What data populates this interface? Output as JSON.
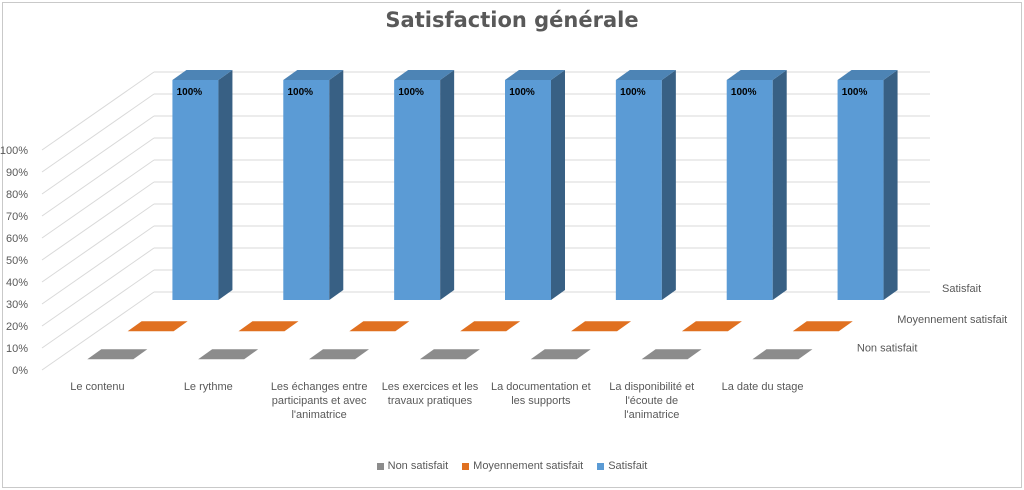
{
  "chart_data": {
    "type": "bar",
    "subtype": "3d-column",
    "title": "Satisfaction générale",
    "categories": [
      "Le contenu",
      "Le rythme",
      "Les échanges entre participants et avec l'animatrice",
      "Les exercices et les travaux pratiques",
      "La documentation et les supports",
      "La disponibilité et l'écoute de l'animatrice",
      "La date du stage"
    ],
    "series": [
      {
        "name": "Non satisfait",
        "color": "#8c8c8c",
        "values": [
          0,
          0,
          0,
          0,
          0,
          0,
          0
        ]
      },
      {
        "name": "Moyennement satisfait",
        "color": "#e07020",
        "values": [
          0,
          0,
          0,
          0,
          0,
          0,
          0
        ]
      },
      {
        "name": "Satisfait",
        "color": "#5b9bd5",
        "values": [
          1,
          1,
          1,
          1,
          1,
          1,
          1
        ]
      }
    ],
    "data_labels": [
      "100%",
      "100%",
      "100%",
      "100%",
      "100%",
      "100%",
      "100%"
    ],
    "y_ticks": [
      "0%",
      "10%",
      "20%",
      "30%",
      "40%",
      "50%",
      "60%",
      "70%",
      "80%",
      "90%",
      "100%"
    ],
    "ylim": [
      0,
      1
    ],
    "legend": "bottom",
    "grid": true
  }
}
